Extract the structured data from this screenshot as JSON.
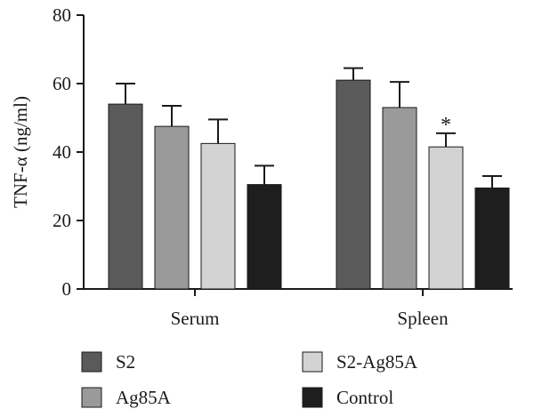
{
  "chart_data": {
    "type": "bar",
    "ylabel": "TNF-α (ng/ml)",
    "ylim": [
      0,
      80
    ],
    "yticks": [
      0,
      20,
      40,
      60,
      80
    ],
    "categories": [
      "Serum",
      "Spleen"
    ],
    "series": [
      {
        "name": "S2",
        "color": "#5a5a5a",
        "values": [
          54,
          61
        ],
        "errors": [
          6,
          3.5
        ]
      },
      {
        "name": "Ag85A",
        "color": "#9a9a9a",
        "values": [
          47.5,
          53
        ],
        "errors": [
          6,
          7.5
        ]
      },
      {
        "name": "S2-Ag85A",
        "color": "#d3d3d3",
        "values": [
          42.5,
          41.5
        ],
        "errors": [
          7,
          4
        ]
      },
      {
        "name": "Control",
        "color": "#1e1e1e",
        "values": [
          30.5,
          29.5
        ],
        "errors": [
          5.5,
          3.5
        ]
      }
    ],
    "annotations": [
      {
        "text": "*",
        "category": "Spleen",
        "series": "S2-Ag85A"
      }
    ],
    "legend": {
      "placement": "bottom",
      "columns": 2
    },
    "grid": false
  }
}
